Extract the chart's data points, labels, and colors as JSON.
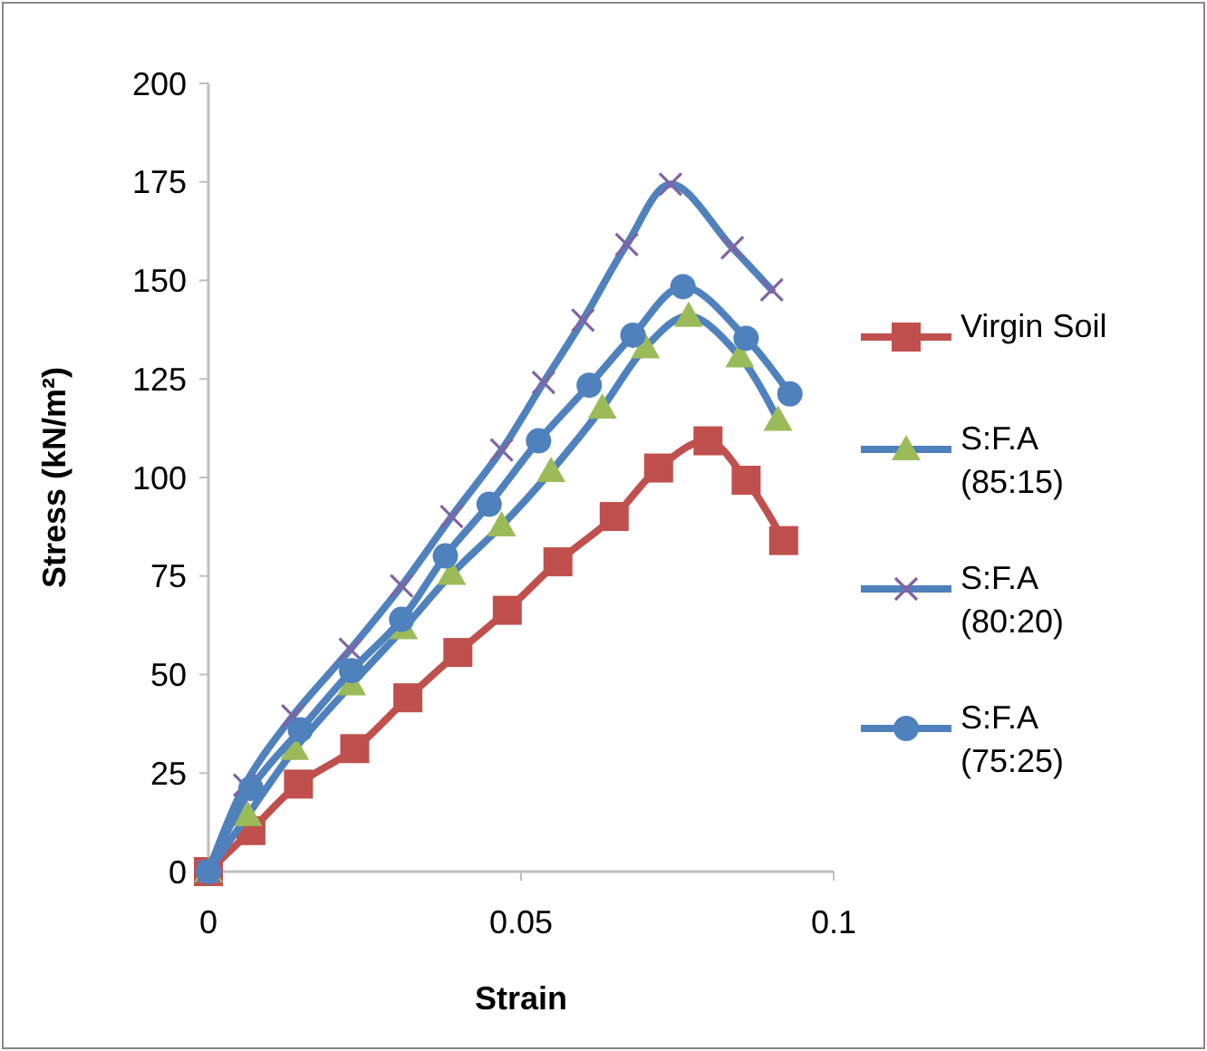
{
  "chart_data": {
    "type": "line",
    "xlabel": "Strain",
    "ylabel": "Stress (kN/m²)",
    "xlim": [
      0,
      0.1
    ],
    "xticks": [
      0,
      0.05,
      0.1
    ],
    "ylim": [
      0,
      200
    ],
    "yticks": [
      0,
      25,
      50,
      75,
      100,
      125,
      150,
      175,
      200
    ],
    "grid": false,
    "legend": "right",
    "line_style": "solid",
    "series": [
      {
        "name": "Virgin Soil",
        "color": "#c0504d",
        "colors": [
          "#c0504d",
          "#c0504d",
          "#c0504d",
          "#c0504d",
          "#c0504d",
          "#c0504d",
          "#c0504d",
          "#c0504d",
          "#c0504d",
          "#c0504d",
          "#c0504d",
          "#c0504d",
          "#c0504d"
        ],
        "marker": "square",
        "x": [
          0,
          0.0068,
          0.0144,
          0.0234,
          0.0319,
          0.0399,
          0.0478,
          0.0559,
          0.0649,
          0.072,
          0.0799,
          0.086,
          0.092
        ],
        "values": [
          0,
          10.4,
          22.2,
          31.2,
          44.1,
          55.6,
          66.3,
          78.6,
          90.1,
          102.4,
          109.3,
          99.3,
          84
        ]
      },
      {
        "name": "S:F.A (85:15)",
        "color": "#4f81bd",
        "colors": [
          "#9bbb59",
          "#9bbb59",
          "#9bbb59",
          "#9bbb59",
          "#9bbb59",
          "#9bbb59",
          "#9bbb59",
          "#9bbb59",
          "#9bbb59",
          "#9bbb59",
          "#9bbb59",
          "#9bbb59",
          "#9bbb59"
        ],
        "marker": "triangle",
        "x": [
          0,
          0.0063,
          0.0138,
          0.0229,
          0.0312,
          0.0389,
          0.0469,
          0.0548,
          0.063,
          0.0699,
          0.0768,
          0.085,
          0.0911
        ],
        "values": [
          0,
          14.3,
          31.1,
          47.5,
          61.7,
          75.5,
          87.8,
          101.6,
          117.7,
          133,
          141,
          130.7,
          114.6
        ]
      },
      {
        "name": "S:F.A (80:20)",
        "color": "#4f81bd",
        "colors": [
          "#8064a2",
          "#8064a2",
          "#8064a2",
          "#8064a2",
          "#8064a2",
          "#8064a2",
          "#8064a2",
          "#8064a2",
          "#8064a2",
          "#8064a2",
          "#8064a2",
          "#8064a2",
          "#8064a2"
        ],
        "marker": "cross",
        "x": [
          0,
          0.0058,
          0.0135,
          0.0227,
          0.0309,
          0.0389,
          0.0469,
          0.0536,
          0.0599,
          0.0669,
          0.0739,
          0.0838,
          0.0901
        ],
        "values": [
          0,
          21.9,
          39.5,
          56.4,
          72.5,
          90.1,
          107,
          124.1,
          139.9,
          159.1,
          174.4,
          158.3,
          147.6
        ]
      },
      {
        "name": "S:F.A (75:25)",
        "color": "#4f81bd",
        "colors": [
          "#4f81bd",
          "#4f81bd",
          "#4f81bd",
          "#4f81bd",
          "#4f81bd",
          "#4f81bd",
          "#4f81bd",
          "#4f81bd",
          "#4f81bd",
          "#4f81bd",
          "#4f81bd",
          "#4f81bd",
          "#4f81bd"
        ],
        "marker": "circle",
        "x": [
          0,
          0.0068,
          0.0147,
          0.0229,
          0.0309,
          0.0379,
          0.0449,
          0.0528,
          0.0609,
          0.0679,
          0.0759,
          0.086,
          0.093
        ],
        "values": [
          0,
          21.1,
          36,
          51,
          64,
          80.1,
          93.2,
          109.3,
          123.4,
          136.1,
          148.4,
          135.3,
          121.2
        ]
      }
    ]
  }
}
